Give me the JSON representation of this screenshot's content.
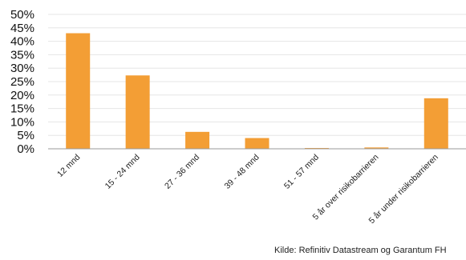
{
  "chart_data": {
    "type": "bar",
    "categories": [
      "12 mnd",
      "15 - 24 mnd",
      "27 - 36 mnd",
      "39 - 48 mnd",
      "51 - 57 mnd",
      "5 år over risikobarrieren",
      "5 år under risikobarrieren"
    ],
    "values": [
      43,
      27.3,
      6.3,
      4,
      0.3,
      0.5,
      18.8
    ],
    "unit": "%",
    "ylim": [
      0,
      50
    ],
    "yticks": [
      "0%",
      "5%",
      "10%",
      "15%",
      "20%",
      "25%",
      "30%",
      "35%",
      "40%",
      "45%",
      "50%"
    ],
    "grid": true,
    "title": "",
    "xlabel": "",
    "ylabel": "",
    "colors": {
      "bar": "#f39e35",
      "grid": "#e6e6e6",
      "axis": "#9a9a9a"
    }
  },
  "source": "Kilde: Refinitiv Datastream og Garantum FH"
}
